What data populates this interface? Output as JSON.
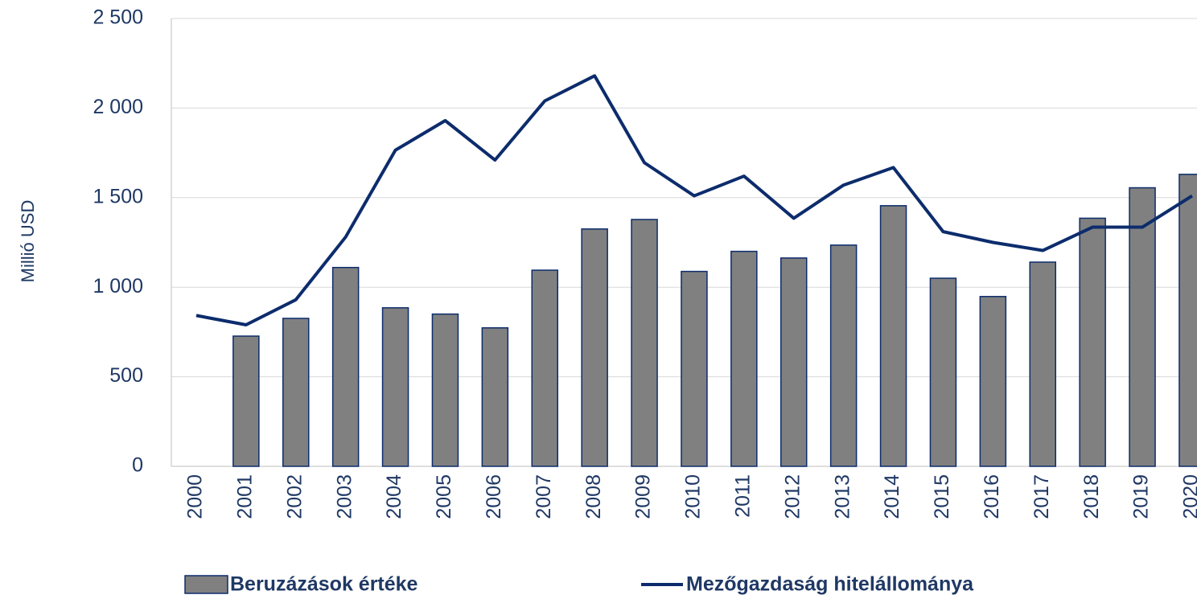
{
  "chart_data": {
    "type": "bar-line",
    "y_label": "Millió USD",
    "categories": [
      "2000",
      "2001",
      "2002",
      "2003",
      "2004",
      "2005",
      "2006",
      "2007",
      "2008",
      "2009",
      "2010",
      "2011",
      "2012",
      "2013",
      "2014",
      "2015",
      "2016",
      "2017",
      "2018",
      "2019",
      "2020"
    ],
    "series": [
      {
        "name": "Beruzázások értéke",
        "type": "bar",
        "color": "#808080",
        "values": [
          null,
          727,
          826,
          1110,
          885,
          850,
          773,
          1095,
          1325,
          1378,
          1088,
          1200,
          1163,
          1235,
          1455,
          1050,
          948,
          1140,
          1385,
          1555,
          1630
        ]
      },
      {
        "name": "Mezőgazdaság hitelállománya",
        "type": "line",
        "color": "#0c2c6c",
        "values": [
          842,
          790,
          930,
          1280,
          1765,
          1930,
          1710,
          2040,
          2180,
          1695,
          1510,
          1620,
          1385,
          1570,
          1668,
          1310,
          1250,
          1205,
          1335,
          1335,
          1510
        ]
      }
    ],
    "ylim": [
      0,
      2500
    ],
    "yticks": [
      0,
      500,
      {
        "value": 1000,
        "label": "1 000"
      },
      {
        "value": 1500,
        "label": "1 500"
      },
      {
        "value": 2000,
        "label": "2 000"
      },
      {
        "value": 2500,
        "label": "2 500"
      }
    ],
    "grid": true
  }
}
